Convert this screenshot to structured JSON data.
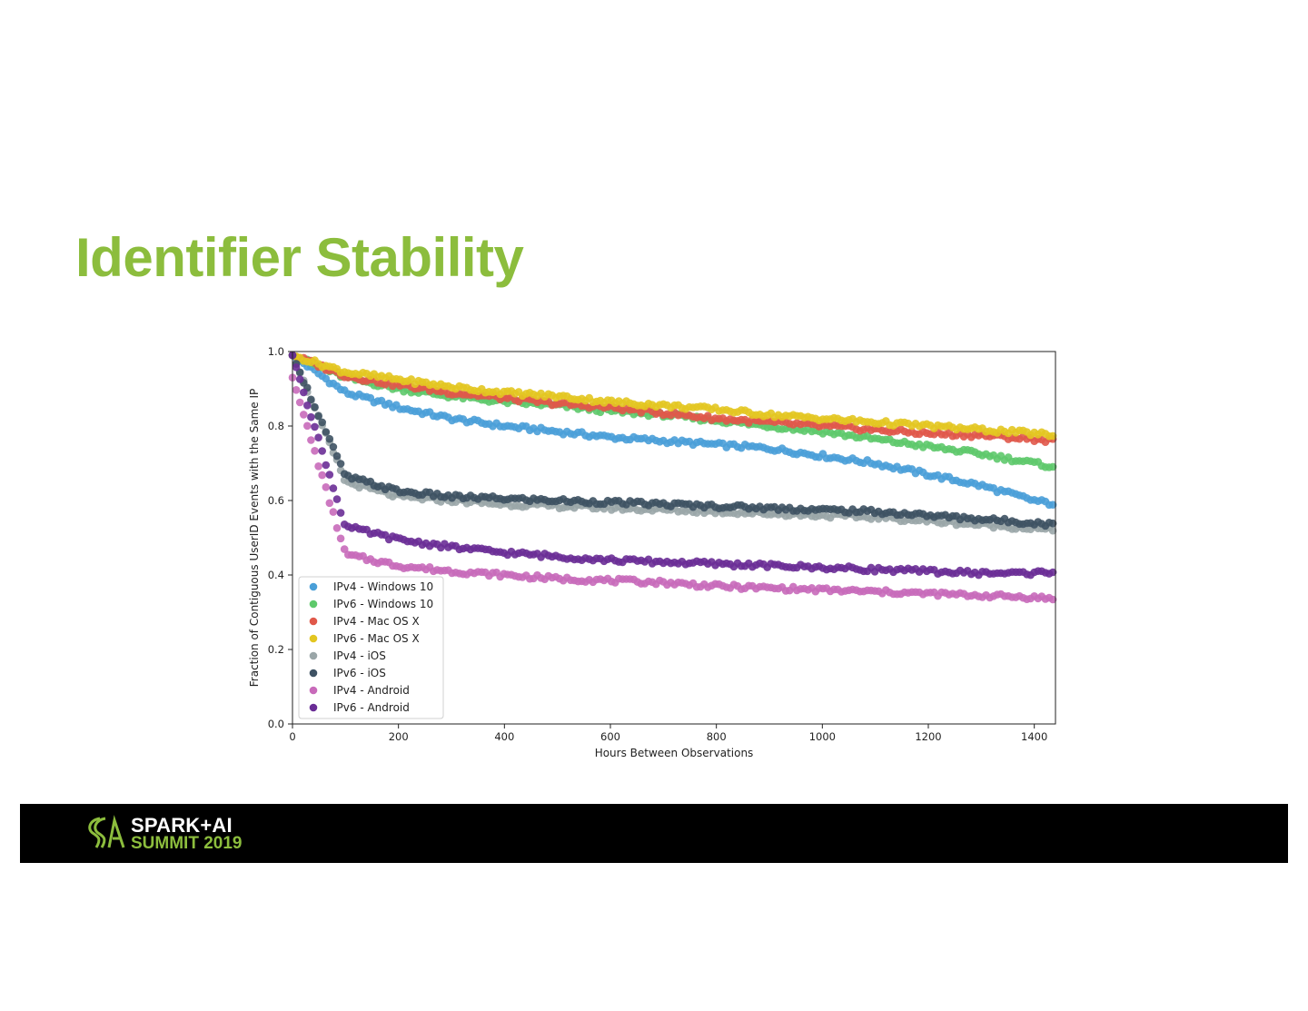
{
  "slide": {
    "title": "Identifier Stability"
  },
  "footer": {
    "logo_line1": "SPARK+AI",
    "logo_line2": "SUMMIT 2019",
    "logo_icon": "spark-ai-summit-logo-icon",
    "bg_color": "#000000",
    "accent_color": "#8cbd3d"
  },
  "chart_data": {
    "type": "scatter",
    "xlabel": "Hours Between Observations",
    "ylabel": "Fraction of Contiguous UserID Events with the Same IP",
    "xlim": [
      0,
      1440
    ],
    "ylim": [
      0.0,
      1.0
    ],
    "xticks": [
      "0",
      "200",
      "400",
      "600",
      "800",
      "1000",
      "1200",
      "1400"
    ],
    "yticks": [
      "0.0",
      "0.2",
      "0.4",
      "0.6",
      "0.8",
      "1.0"
    ],
    "legend_position": "lower-left",
    "grid": false,
    "x": [
      0,
      100,
      200,
      300,
      400,
      500,
      600,
      700,
      800,
      900,
      1000,
      1100,
      1200,
      1300,
      1400,
      1440
    ],
    "series": [
      {
        "name": "IPv4 - Windows 10",
        "color": "#4a9fd8",
        "values": [
          0.99,
          0.89,
          0.85,
          0.82,
          0.8,
          0.785,
          0.77,
          0.76,
          0.75,
          0.74,
          0.72,
          0.7,
          0.67,
          0.64,
          0.6,
          0.59
        ]
      },
      {
        "name": "IPv6 - Windows 10",
        "color": "#5ec96b",
        "values": [
          0.99,
          0.93,
          0.9,
          0.88,
          0.865,
          0.855,
          0.84,
          0.83,
          0.815,
          0.8,
          0.785,
          0.765,
          0.745,
          0.725,
          0.7,
          0.69
        ]
      },
      {
        "name": "IPv4 - Mac OS X",
        "color": "#e0584a",
        "values": [
          0.99,
          0.935,
          0.91,
          0.89,
          0.875,
          0.86,
          0.85,
          0.835,
          0.82,
          0.81,
          0.8,
          0.79,
          0.78,
          0.775,
          0.765,
          0.76
        ]
      },
      {
        "name": "IPv6 - Mac OS X",
        "color": "#e3c621",
        "values": [
          0.99,
          0.945,
          0.925,
          0.905,
          0.89,
          0.88,
          0.865,
          0.855,
          0.845,
          0.83,
          0.82,
          0.81,
          0.8,
          0.79,
          0.78,
          0.775
        ]
      },
      {
        "name": "IPv4 - iOS",
        "color": "#9aa6a8",
        "values": [
          0.99,
          0.65,
          0.61,
          0.6,
          0.59,
          0.585,
          0.58,
          0.575,
          0.57,
          0.565,
          0.56,
          0.555,
          0.545,
          0.535,
          0.525,
          0.52
        ]
      },
      {
        "name": "IPv6 - iOS",
        "color": "#3e5263",
        "values": [
          0.99,
          0.665,
          0.625,
          0.61,
          0.605,
          0.6,
          0.595,
          0.59,
          0.585,
          0.58,
          0.575,
          0.57,
          0.56,
          0.55,
          0.54,
          0.535
        ]
      },
      {
        "name": "IPv4 - Android",
        "color": "#c86aba",
        "values": [
          0.93,
          0.455,
          0.425,
          0.41,
          0.4,
          0.39,
          0.385,
          0.38,
          0.37,
          0.365,
          0.36,
          0.355,
          0.35,
          0.345,
          0.34,
          0.335
        ]
      },
      {
        "name": "IPv6 - Android",
        "color": "#6a2d96",
        "values": [
          0.99,
          0.53,
          0.495,
          0.475,
          0.46,
          0.45,
          0.44,
          0.435,
          0.43,
          0.425,
          0.42,
          0.415,
          0.41,
          0.405,
          0.405,
          0.41
        ]
      }
    ]
  }
}
